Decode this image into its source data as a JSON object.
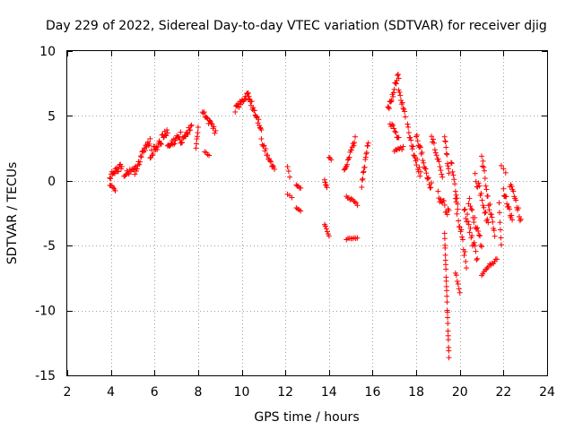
{
  "chart_data": {
    "type": "scatter",
    "title": "Day 229 of 2022, Sidereal Day-to-day VTEC variation (SDTVAR) for receiver djig",
    "xlabel": "GPS time / hours",
    "ylabel": "SDTVAR / TECUs",
    "xlim": [
      2,
      24
    ],
    "ylim": [
      -15,
      10
    ],
    "xticks": [
      2,
      4,
      6,
      8,
      10,
      12,
      14,
      16,
      18,
      20,
      22,
      24
    ],
    "yticks": [
      -15,
      -10,
      -5,
      0,
      5,
      10
    ],
    "grid": true,
    "marker": "+",
    "color": "#ff0000",
    "segments": [
      {
        "x0": 3.95,
        "x1": 4.5,
        "y0": 0.3,
        "y1": 1.2,
        "n": 18,
        "amp": 0.5
      },
      {
        "x0": 3.95,
        "x1": 4.2,
        "y0": -0.3,
        "y1": -0.7,
        "n": 6,
        "amp": 0.2
      },
      {
        "x0": 4.6,
        "x1": 5.1,
        "y0": 0.4,
        "y1": 1.0,
        "n": 12,
        "amp": 0.4
      },
      {
        "x0": 5.1,
        "x1": 5.8,
        "y0": 0.8,
        "y1": 3.2,
        "n": 22,
        "amp": 0.6
      },
      {
        "x0": 5.8,
        "x1": 6.6,
        "y0": 2.0,
        "y1": 3.8,
        "n": 26,
        "amp": 0.7
      },
      {
        "x0": 6.6,
        "x1": 7.2,
        "y0": 2.5,
        "y1": 3.5,
        "n": 18,
        "amp": 0.6
      },
      {
        "x0": 7.2,
        "x1": 7.7,
        "y0": 3.0,
        "y1": 4.2,
        "n": 16,
        "amp": 0.5
      },
      {
        "x0": 7.9,
        "x1": 8.0,
        "y0": 2.6,
        "y1": 4.0,
        "n": 6,
        "amp": 0.3
      },
      {
        "x0": 8.2,
        "x1": 8.8,
        "y0": 5.4,
        "y1": 3.8,
        "n": 16,
        "amp": 0.5
      },
      {
        "x0": 8.3,
        "x1": 8.5,
        "y0": 2.2,
        "y1": 2.0,
        "n": 4,
        "amp": 0.1
      },
      {
        "x0": 9.7,
        "x1": 10.3,
        "y0": 5.5,
        "y1": 6.7,
        "n": 18,
        "amp": 0.4
      },
      {
        "x0": 10.3,
        "x1": 10.9,
        "y0": 6.5,
        "y1": 4.0,
        "n": 20,
        "amp": 0.6
      },
      {
        "x0": 10.9,
        "x1": 11.5,
        "y0": 3.0,
        "y1": 0.8,
        "n": 16,
        "amp": 0.5
      },
      {
        "x0": 12.1,
        "x1": 12.2,
        "y0": 1.1,
        "y1": 0.3,
        "n": 3,
        "amp": 0.1
      },
      {
        "x0": 12.1,
        "x1": 12.3,
        "y0": -1.0,
        "y1": -1.3,
        "n": 3,
        "amp": 0.1
      },
      {
        "x0": 12.5,
        "x1": 12.7,
        "y0": -0.3,
        "y1": -0.6,
        "n": 5,
        "amp": 0.1
      },
      {
        "x0": 12.5,
        "x1": 12.7,
        "y0": -2.1,
        "y1": -2.3,
        "n": 4,
        "amp": 0.1
      },
      {
        "x0": 13.8,
        "x1": 13.9,
        "y0": 0.1,
        "y1": -0.5,
        "n": 5,
        "amp": 0.2
      },
      {
        "x0": 13.8,
        "x1": 14.0,
        "y0": -3.4,
        "y1": -4.2,
        "n": 6,
        "amp": 0.2
      },
      {
        "x0": 14.0,
        "x1": 14.1,
        "y0": 1.8,
        "y1": 1.6,
        "n": 3,
        "amp": 0.1
      },
      {
        "x0": 14.7,
        "x1": 15.2,
        "y0": 0.8,
        "y1": 3.2,
        "n": 16,
        "amp": 0.4
      },
      {
        "x0": 14.8,
        "x1": 15.3,
        "y0": -1.2,
        "y1": -1.8,
        "n": 10,
        "amp": 0.2
      },
      {
        "x0": 14.8,
        "x1": 15.3,
        "y0": -4.5,
        "y1": -4.4,
        "n": 8,
        "amp": 0.1
      },
      {
        "x0": 15.5,
        "x1": 15.8,
        "y0": -0.3,
        "y1": 3.0,
        "n": 14,
        "amp": 0.4
      },
      {
        "x0": 16.7,
        "x1": 17.2,
        "y0": 5.5,
        "y1": 8.2,
        "n": 18,
        "amp": 0.6
      },
      {
        "x0": 16.8,
        "x1": 17.2,
        "y0": 4.5,
        "y1": 3.2,
        "n": 10,
        "amp": 0.4
      },
      {
        "x0": 17.0,
        "x1": 17.4,
        "y0": 2.2,
        "y1": 2.6,
        "n": 8,
        "amp": 0.3
      },
      {
        "x0": 17.2,
        "x1": 17.5,
        "y0": 7.0,
        "y1": 5.0,
        "n": 10,
        "amp": 0.4
      },
      {
        "x0": 17.6,
        "x1": 18.2,
        "y0": 4.0,
        "y1": 0.5,
        "n": 20,
        "amp": 0.8
      },
      {
        "x0": 18.0,
        "x1": 18.7,
        "y0": 3.5,
        "y1": -0.5,
        "n": 22,
        "amp": 0.9
      },
      {
        "x0": 18.7,
        "x1": 19.2,
        "y0": 3.5,
        "y1": 0.5,
        "n": 14,
        "amp": 0.6
      },
      {
        "x0": 19.0,
        "x1": 19.5,
        "y0": -1.0,
        "y1": -2.5,
        "n": 14,
        "amp": 0.8
      },
      {
        "x0": 19.3,
        "x1": 19.5,
        "y0": -4.0,
        "y1": -13.6,
        "n": 24,
        "amp": 0.3
      },
      {
        "x0": 19.3,
        "x1": 19.5,
        "y0": 3.5,
        "y1": 0.5,
        "n": 10,
        "amp": 0.4
      },
      {
        "x0": 19.6,
        "x1": 19.9,
        "y0": 1.6,
        "y1": -1.8,
        "n": 10,
        "amp": 0.4
      },
      {
        "x0": 19.8,
        "x1": 20.3,
        "y0": -1.5,
        "y1": -6.5,
        "n": 16,
        "amp": 0.8
      },
      {
        "x0": 19.8,
        "x1": 20.0,
        "y0": -7.0,
        "y1": -8.7,
        "n": 6,
        "amp": 0.3
      },
      {
        "x0": 20.2,
        "x1": 20.8,
        "y0": -2.0,
        "y1": -6.0,
        "n": 18,
        "amp": 0.9
      },
      {
        "x0": 20.4,
        "x1": 21.0,
        "y0": -1.5,
        "y1": -5.0,
        "n": 16,
        "amp": 0.8
      },
      {
        "x0": 20.7,
        "x1": 21.3,
        "y0": 0.5,
        "y1": -3.5,
        "n": 16,
        "amp": 0.9
      },
      {
        "x0": 21.0,
        "x1": 21.6,
        "y0": 1.8,
        "y1": -4.5,
        "n": 20,
        "amp": 0.9
      },
      {
        "x0": 21.0,
        "x1": 21.7,
        "y0": -7.2,
        "y1": -6.0,
        "n": 14,
        "amp": 0.3
      },
      {
        "x0": 21.8,
        "x1": 21.9,
        "y0": -1.8,
        "y1": -5.0,
        "n": 6,
        "amp": 0.3
      },
      {
        "x0": 21.9,
        "x1": 22.1,
        "y0": 1.2,
        "y1": 0.6,
        "n": 3,
        "amp": 0.1
      },
      {
        "x0": 22.0,
        "x1": 22.4,
        "y0": -0.8,
        "y1": -3.0,
        "n": 14,
        "amp": 0.6
      },
      {
        "x0": 22.3,
        "x1": 22.8,
        "y0": -0.2,
        "y1": -3.0,
        "n": 14,
        "amp": 0.6
      }
    ]
  }
}
